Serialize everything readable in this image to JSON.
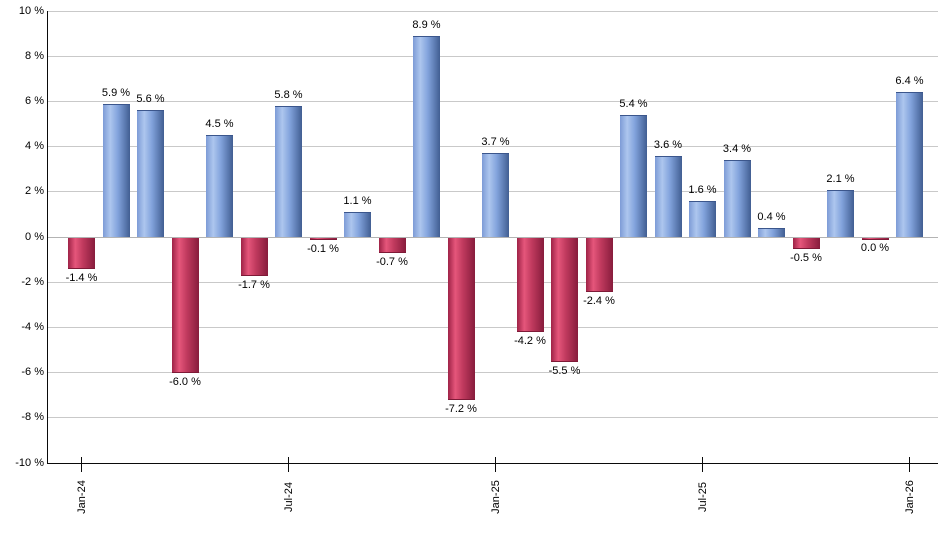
{
  "chart_data": {
    "type": "bar",
    "title": "",
    "xlabel": "",
    "ylabel": "",
    "ylim": [
      -10,
      10
    ],
    "grid": true,
    "values": [
      -1.4,
      5.9,
      5.6,
      -6.0,
      4.5,
      -1.7,
      5.8,
      -0.1,
      1.1,
      -0.7,
      8.9,
      -7.2,
      3.7,
      -4.2,
      -5.5,
      -2.4,
      5.4,
      3.6,
      1.6,
      3.4,
      0.4,
      -0.5,
      2.1,
      0.0,
      6.4
    ],
    "value_labels": [
      "-1.4 %",
      "5.9 %",
      "5.6 %",
      "-6.0 %",
      "4.5 %",
      "-1.7 %",
      "5.8 %",
      "-0.1 %",
      "1.1 %",
      "-0.7 %",
      "8.9 %",
      "-7.2 %",
      "3.7 %",
      "-4.2 %",
      "-5.5 %",
      "-2.4 %",
      "5.4 %",
      "3.6 %",
      "1.6 %",
      "3.4 %",
      "0.4 %",
      "-0.5 %",
      "2.1 %",
      "0.0 %",
      "6.4 %"
    ],
    "x_ticks": [
      {
        "index": 0,
        "label": "Jan-24"
      },
      {
        "index": 6,
        "label": "Jul-24"
      },
      {
        "index": 12,
        "label": "Jan-25"
      },
      {
        "index": 18,
        "label": "Jul-25"
      },
      {
        "index": 24,
        "label": "Jan-26"
      }
    ],
    "y_ticks": [
      {
        "value": 10,
        "label": "10 %"
      },
      {
        "value": 8,
        "label": "8 %"
      },
      {
        "value": 6,
        "label": "6 %"
      },
      {
        "value": 4,
        "label": "4 %"
      },
      {
        "value": 2,
        "label": "2 %"
      },
      {
        "value": 0,
        "label": "0 %"
      },
      {
        "value": -2,
        "label": "-2 %"
      },
      {
        "value": -4,
        "label": "-4 %"
      },
      {
        "value": -6,
        "label": "-6 %"
      },
      {
        "value": -8,
        "label": "-8 %"
      },
      {
        "value": -10,
        "label": "-10 %"
      }
    ],
    "colors": {
      "positive_gradient": [
        "#7d9bd6",
        "#adc6ee",
        "#82a3dc",
        "#415e92"
      ],
      "positive_cap": "#3b568c",
      "negative_gradient": [
        "#9e2246",
        "#e5567b",
        "#c03a5e",
        "#871c3c"
      ],
      "negative_cap": "#7e1a37",
      "gridline": "#c9c9c9",
      "zero_line": "#b3b3b3",
      "axis": "#0a0a0a",
      "text": "#000000"
    }
  }
}
